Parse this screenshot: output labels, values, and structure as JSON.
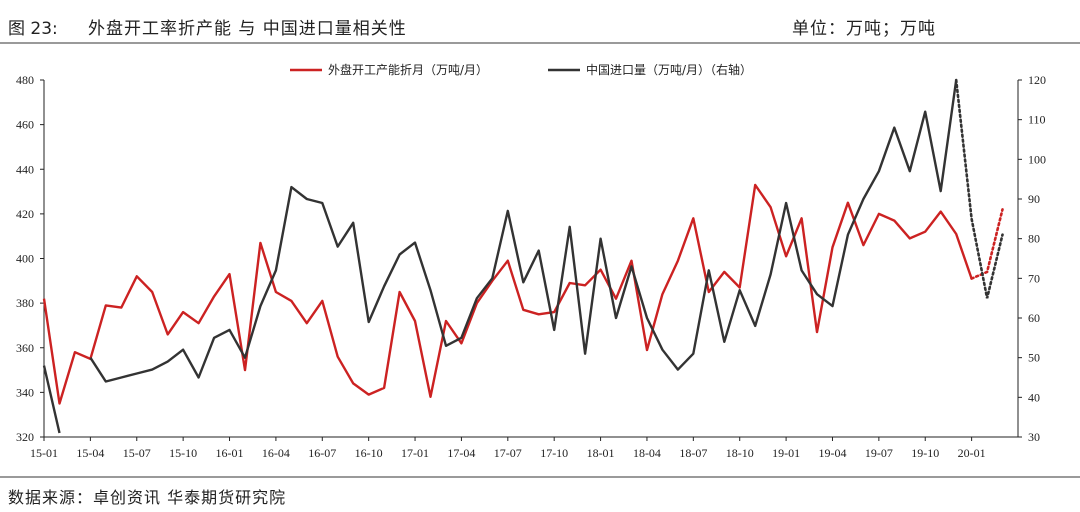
{
  "header": {
    "figure_label": "图 23:",
    "title": "外盘开工率折产能 与 中国进口量相关性",
    "unit": "单位：万吨；万吨"
  },
  "source": "数据来源：卓创资讯 华泰期货研究院",
  "chart_data": {
    "type": "line",
    "x_categories": [
      "15-01",
      "15-02",
      "15-03",
      "15-04",
      "15-05",
      "15-06",
      "15-07",
      "15-08",
      "15-09",
      "15-10",
      "15-11",
      "15-12",
      "16-01",
      "16-02",
      "16-03",
      "16-04",
      "16-05",
      "16-06",
      "16-07",
      "16-08",
      "16-09",
      "16-10",
      "16-11",
      "16-12",
      "17-01",
      "17-02",
      "17-03",
      "17-04",
      "17-05",
      "17-06",
      "17-07",
      "17-08",
      "17-09",
      "17-10",
      "17-11",
      "17-12",
      "18-01",
      "18-02",
      "18-03",
      "18-04",
      "18-05",
      "18-06",
      "18-07",
      "18-08",
      "18-09",
      "18-10",
      "18-11",
      "18-12",
      "19-01",
      "19-02",
      "19-03",
      "19-04",
      "19-05",
      "19-06",
      "19-07",
      "19-08",
      "19-09",
      "19-10",
      "19-11",
      "19-12",
      "20-01",
      "20-02",
      "20-03",
      "20-04"
    ],
    "x_tick_labels": [
      "15-01",
      "15-04",
      "15-07",
      "15-10",
      "16-01",
      "16-04",
      "16-07",
      "16-10",
      "17-01",
      "17-04",
      "17-07",
      "17-10",
      "18-01",
      "18-04",
      "18-07",
      "18-10",
      "19-01",
      "19-04",
      "19-07",
      "19-10",
      "20-01"
    ],
    "y_left": {
      "ylim": [
        320,
        480
      ],
      "ticks": [
        "320",
        "340",
        "360",
        "380",
        "400",
        "420",
        "440",
        "460",
        "480"
      ]
    },
    "y_right": {
      "ylim": [
        30,
        120
      ],
      "ticks": [
        "30",
        "40",
        "50",
        "60",
        "70",
        "80",
        "90",
        "100",
        "110",
        "120"
      ]
    },
    "legend_position": "top-center",
    "series": [
      {
        "name": "外盘开工产能折月（万吨/月）",
        "axis": "left",
        "color": "#cc2222",
        "values": [
          382,
          335,
          358,
          355,
          379,
          378,
          392,
          385,
          366,
          376,
          371,
          383,
          393,
          350,
          407,
          385,
          381,
          371,
          381,
          356,
          344,
          339,
          342,
          385,
          372,
          338,
          372,
          362,
          380,
          390,
          399,
          377,
          375,
          376,
          389,
          388,
          395,
          382,
          399,
          359,
          384,
          399,
          418,
          385,
          394,
          387,
          433,
          423,
          401,
          418,
          367,
          405,
          425,
          406,
          420,
          417,
          409,
          412,
          421,
          411,
          391,
          394,
          422,
          null
        ],
        "projected_from_index": 60
      },
      {
        "name": "中国进口量（万吨/月）（右轴）",
        "axis": "right",
        "color": "#333333",
        "values": [
          48,
          31,
          null,
          50,
          44,
          45,
          46,
          47,
          49,
          52,
          45,
          55,
          57,
          50,
          63,
          72,
          93,
          90,
          89,
          78,
          84,
          59,
          68,
          76,
          79,
          67,
          53,
          55,
          65,
          70,
          87,
          69,
          77,
          57,
          83,
          51,
          80,
          60,
          73,
          60,
          52,
          47,
          51,
          72,
          54,
          67,
          58,
          71,
          89,
          72,
          66,
          63,
          81,
          90,
          97,
          108,
          97,
          112,
          92,
          120,
          85,
          65,
          81,
          null
        ],
        "projected_from_index": 59
      }
    ]
  }
}
